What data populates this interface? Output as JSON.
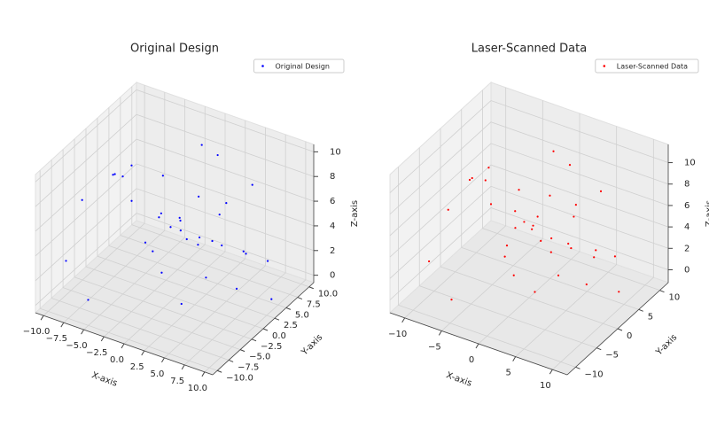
{
  "chart_data": [
    {
      "type": "scatter",
      "title": "Original Design",
      "x_label": "X-axis",
      "y_label": "Y-axis",
      "z_label": "Z-axis",
      "legend": "upper right",
      "grid": true,
      "xlim": [
        -11,
        11
      ],
      "ylim": [
        -11,
        11
      ],
      "zlim": [
        -0.6,
        10.6
      ],
      "xticks": [
        {
          "value": -10,
          "label": "−10.0"
        },
        {
          "value": -7.5,
          "label": "−7.5"
        },
        {
          "value": -5,
          "label": "−5.0"
        },
        {
          "value": -2.5,
          "label": "−2.5"
        },
        {
          "value": 0,
          "label": "0.0"
        },
        {
          "value": 2.5,
          "label": "2.5"
        },
        {
          "value": 5,
          "label": "5.0"
        },
        {
          "value": 7.5,
          "label": "7.5"
        },
        {
          "value": 10,
          "label": "10.0"
        }
      ],
      "yticks": [
        {
          "value": -10,
          "label": "−10.0"
        },
        {
          "value": -7.5,
          "label": "−7.5"
        },
        {
          "value": -5,
          "label": "−5.0"
        },
        {
          "value": -2.5,
          "label": "−2.5"
        },
        {
          "value": 0,
          "label": "0.0"
        },
        {
          "value": 2.5,
          "label": "2.5"
        },
        {
          "value": 5,
          "label": "5.0"
        },
        {
          "value": 7.5,
          "label": "7.5"
        },
        {
          "value": 10,
          "label": "10.0"
        }
      ],
      "zticks": [
        0,
        2,
        4,
        6,
        8,
        10
      ],
      "series": [
        {
          "name": "Original Design",
          "color": "#0000ff",
          "x": [
            -8.2,
            4.5,
            -1.3,
            7.7,
            -5.6,
            2.1,
            9.3,
            -9.1,
            0.4,
            6.2,
            -3.8,
            5.9,
            -6.7,
            1.8,
            -0.9,
            8.6,
            -4.4,
            3.3,
            -7.3,
            9.8,
            -2.2,
            4.9,
            -9.6,
            6.8,
            0.0,
            -5.0,
            2.7,
            7.1,
            -1.7,
            -8.8,
            3.9,
            5.4,
            -6.1,
            1.2,
            8.0,
            -3.1
          ],
          "y": [
            3.1,
            -6.4,
            8.2,
            1.5,
            -9.0,
            5.7,
            -2.8,
            6.6,
            -4.1,
            9.4,
            0.3,
            -7.7,
            2.4,
            -1.9,
            7.0,
            -5.3,
            4.8,
            -8.6,
            -0.6,
            3.9,
            9.1,
            -3.5,
            -6.8,
            5.0,
            1.1,
            7.9,
            -9.5,
            -1.2,
            4.3,
            -4.7,
            8.7,
            0.8,
            -2.3,
            6.1,
            -7.2,
            2.9
          ],
          "z": [
            6.3,
            2.1,
            8.7,
            4.4,
            1.0,
            9.5,
            3.2,
            5.8,
            7.4,
            0.6,
            2.9,
            8.1,
            4.9,
            6.7,
            1.7,
            9.9,
            3.6,
            5.1,
            7.9,
            0.2,
            4.0,
            6.0,
            2.5,
            8.4,
            5.5,
            1.3,
            7.0,
            9.1,
            3.0,
            6.9,
            0.9,
            4.6,
            8.8,
            2.2,
            5.3,
            7.6
          ]
        }
      ]
    },
    {
      "type": "scatter",
      "title": "Laser-Scanned Data",
      "x_label": "X-axis",
      "y_label": "Y-axis",
      "z_label": "Z-axis",
      "legend": "upper right",
      "grid": true,
      "xlim": [
        -12,
        12
      ],
      "ylim": [
        -12,
        12
      ],
      "zlim": [
        -1.2,
        11.7
      ],
      "xticks": [
        {
          "value": -10,
          "label": "−10"
        },
        {
          "value": -5,
          "label": "−5"
        },
        0,
        5,
        10
      ],
      "yticks": [
        {
          "value": -10,
          "label": "−10"
        },
        {
          "value": -5,
          "label": "−5"
        },
        0,
        5,
        10
      ],
      "zticks": [
        0,
        2,
        4,
        6,
        8,
        10
      ],
      "series": [
        {
          "name": "Laser-Scanned Data",
          "color": "#ff0000",
          "x": [
            -7.9,
            4.2,
            -1.6,
            8.1,
            -5.2,
            2.5,
            9.6,
            -9.4,
            0.7,
            6.5,
            -3.4,
            6.2,
            -6.3,
            1.4,
            -1.2,
            8.9,
            -4.8,
            3.0,
            -7.6,
            10.1,
            -2.6,
            5.2,
            -9.9,
            7.1,
            0.3,
            -5.4,
            2.3,
            6.8,
            -1.9,
            -8.5,
            4.3,
            5.0,
            -6.5,
            1.6,
            8.3,
            -2.8
          ],
          "y": [
            3.5,
            -6.0,
            8.6,
            1.2,
            -9.3,
            5.3,
            -3.2,
            6.9,
            -4.5,
            9.0,
            0.7,
            -8.1,
            2.0,
            -1.5,
            7.4,
            -5.0,
            5.1,
            -8.9,
            -0.2,
            3.6,
            9.5,
            -3.9,
            -6.4,
            4.6,
            1.5,
            8.3,
            -9.8,
            -0.8,
            4.0,
            -4.3,
            8.3,
            1.2,
            -2.7,
            6.5,
            -7.6,
            2.5
          ],
          "z": [
            6.6,
            2.5,
            9.0,
            4.1,
            0.7,
            9.9,
            3.5,
            6.2,
            7.1,
            1.0,
            2.6,
            8.5,
            5.3,
            6.4,
            1.4,
            10.3,
            3.9,
            4.8,
            8.2,
            0.5,
            4.3,
            5.7,
            2.1,
            8.8,
            5.9,
            1.6,
            6.7,
            9.4,
            3.3,
            6.5,
            1.3,
            4.2,
            9.2,
            1.9,
            5.6,
            7.3
          ]
        }
      ]
    }
  ]
}
